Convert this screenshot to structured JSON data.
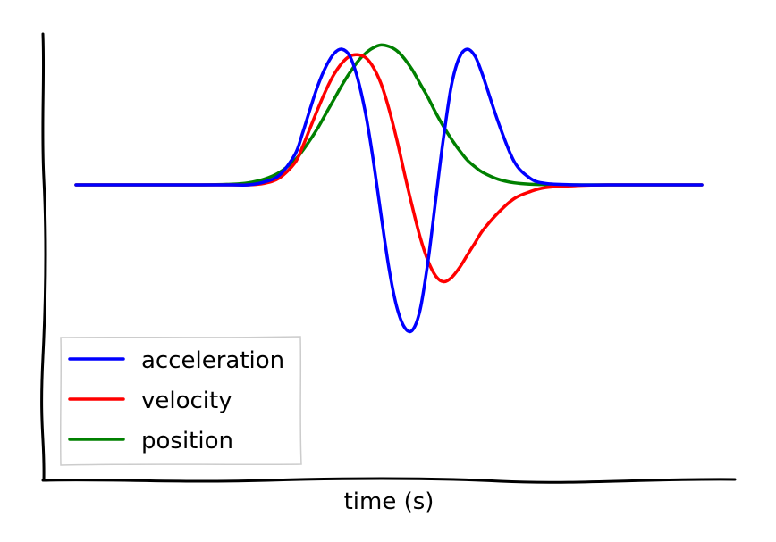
{
  "chart_data": {
    "type": "line",
    "title": "",
    "xlabel": "time (s)",
    "ylabel": "",
    "xlim": [
      -10,
      10
    ],
    "ylim": [
      -1.1,
      1.1
    ],
    "grid": false,
    "legend": "bottom-left",
    "x": [
      -10,
      -9,
      -8,
      -7,
      -6,
      -5,
      -4.5,
      -4,
      -3.5,
      -3,
      -2.75,
      -2.5,
      -2.25,
      -2,
      -1.75,
      -1.5,
      -1.25,
      -1,
      -0.75,
      -0.5,
      -0.25,
      0,
      0.25,
      0.5,
      0.75,
      1,
      1.25,
      1.5,
      1.75,
      2,
      2.25,
      2.5,
      2.75,
      3,
      3.5,
      4,
      4.5,
      5,
      6,
      7,
      8,
      9,
      10
    ],
    "series": [
      {
        "name": "acceleration",
        "color": "#0000ff",
        "values": [
          0,
          0,
          0,
          0,
          0,
          0,
          0,
          0.02,
          0.07,
          0.22,
          0.38,
          0.56,
          0.73,
          0.86,
          0.95,
          0.98,
          0.93,
          0.77,
          0.52,
          0.18,
          -0.22,
          -0.6,
          -0.88,
          -1.03,
          -1.05,
          -0.9,
          -0.55,
          -0.1,
          0.35,
          0.72,
          0.92,
          0.98,
          0.93,
          0.79,
          0.45,
          0.17,
          0.05,
          0.01,
          0,
          0,
          0,
          0,
          0
        ]
      },
      {
        "name": "velocity",
        "color": "#ff0000",
        "values": [
          0,
          0,
          0,
          0,
          0,
          0,
          0,
          0.01,
          0.05,
          0.16,
          0.28,
          0.42,
          0.56,
          0.69,
          0.8,
          0.88,
          0.93,
          0.94,
          0.92,
          0.85,
          0.73,
          0.55,
          0.33,
          0.08,
          -0.16,
          -0.38,
          -0.55,
          -0.66,
          -0.7,
          -0.67,
          -0.6,
          -0.51,
          -0.42,
          -0.33,
          -0.2,
          -0.1,
          -0.05,
          -0.02,
          -0.005,
          0,
          0,
          0,
          0
        ]
      },
      {
        "name": "position",
        "color": "#008000",
        "values": [
          0,
          0,
          0,
          0,
          0,
          0.005,
          0.015,
          0.04,
          0.09,
          0.18,
          0.25,
          0.33,
          0.42,
          0.52,
          0.62,
          0.72,
          0.81,
          0.89,
          0.95,
          0.99,
          1.01,
          1.0,
          0.97,
          0.91,
          0.83,
          0.73,
          0.63,
          0.52,
          0.42,
          0.33,
          0.25,
          0.18,
          0.13,
          0.09,
          0.04,
          0.015,
          0.005,
          0.002,
          0,
          0,
          0,
          0,
          0
        ]
      }
    ]
  }
}
